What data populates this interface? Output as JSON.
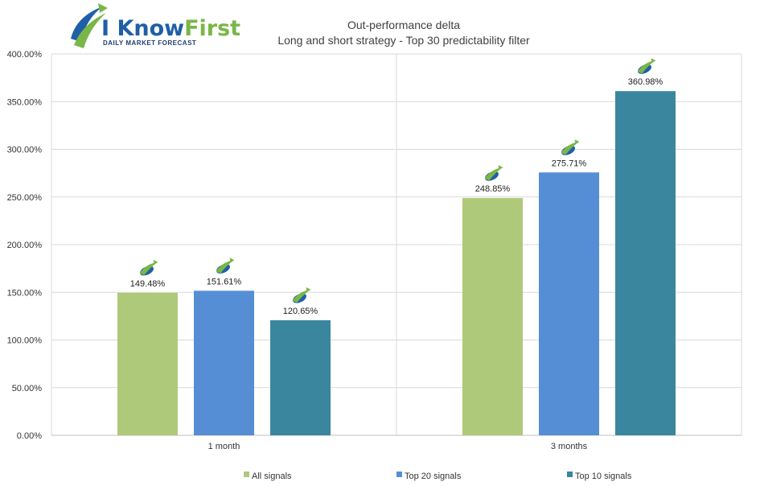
{
  "logo": {
    "name": "I KnowFirst",
    "tagline": "Daily Market Forecast",
    "colors": {
      "blue": "#1f5fa8",
      "green": "#7ab648",
      "dark": "#1d3f6e"
    }
  },
  "chart_data": {
    "type": "bar",
    "title": "Out-performance delta",
    "subtitle": "Long and short strategy - Top 30 predictability filter",
    "categories": [
      "1 month",
      "3 months"
    ],
    "series": [
      {
        "name": "All signals",
        "color": "#afc97a",
        "values": [
          149.48,
          248.85
        ],
        "labels": [
          "149.48%",
          "248.85%"
        ]
      },
      {
        "name": "Top 20 signals",
        "color": "#558ed5",
        "values": [
          151.61,
          275.71
        ],
        "labels": [
          "151.61%",
          "275.71%"
        ]
      },
      {
        "name": "Top 10 signals",
        "color": "#3a869e",
        "values": [
          120.65,
          360.98
        ],
        "labels": [
          "120.65%",
          "360.98%"
        ]
      }
    ],
    "y_ticks": [
      0,
      50,
      100,
      150,
      200,
      250,
      300,
      350,
      400
    ],
    "y_tick_labels": [
      "0.00%",
      "50.00%",
      "100.00%",
      "150.00%",
      "200.00%",
      "250.00%",
      "300.00%",
      "350.00%",
      "400.00%"
    ],
    "ylim": [
      0,
      400
    ],
    "grid": true,
    "legend_position": "bottom"
  }
}
